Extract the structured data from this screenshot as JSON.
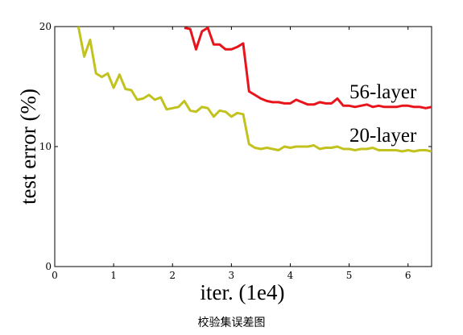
{
  "caption": "校验集误差图",
  "chart_data": {
    "type": "line",
    "title": "",
    "xlabel": "iter. (1e4)",
    "ylabel": "test error (%)",
    "xlim": [
      0,
      6.4
    ],
    "ylim": [
      0,
      20
    ],
    "xticks": [
      0,
      1,
      2,
      3,
      4,
      5,
      6
    ],
    "yticks": [
      0,
      10,
      20
    ],
    "xtick_labels": [
      "0",
      "1",
      "2",
      "3",
      "4",
      "5",
      "6"
    ],
    "ytick_labels": [
      "0",
      "10",
      "20"
    ],
    "grid": false,
    "series": [
      {
        "name": "56-layer",
        "color": "#e8141b",
        "x": [
          2.2,
          2.3,
          2.4,
          2.5,
          2.6,
          2.7,
          2.8,
          2.9,
          3.0,
          3.1,
          3.2,
          3.3,
          3.4,
          3.5,
          3.6,
          3.7,
          3.8,
          3.9,
          4.0,
          4.1,
          4.2,
          4.3,
          4.4,
          4.5,
          4.6,
          4.7,
          4.8,
          4.9,
          5.0,
          5.1,
          5.2,
          5.3,
          5.4,
          5.5,
          5.6,
          5.7,
          5.8,
          5.9,
          6.0,
          6.1,
          6.2,
          6.3,
          6.4
        ],
        "y": [
          19.9,
          19.8,
          18.1,
          19.6,
          19.9,
          18.5,
          18.5,
          18.1,
          18.1,
          18.3,
          18.6,
          14.6,
          14.3,
          14.0,
          13.8,
          13.7,
          13.7,
          13.6,
          13.6,
          13.9,
          13.7,
          13.5,
          13.5,
          13.7,
          13.6,
          13.6,
          14.0,
          13.4,
          13.4,
          13.3,
          13.4,
          13.5,
          13.3,
          13.4,
          13.3,
          13.3,
          13.3,
          13.4,
          13.4,
          13.3,
          13.3,
          13.2,
          13.3
        ]
      },
      {
        "name": "20-layer",
        "color": "#c2c21e",
        "x": [
          0.4,
          0.5,
          0.6,
          0.7,
          0.8,
          0.9,
          1.0,
          1.1,
          1.2,
          1.3,
          1.4,
          1.5,
          1.6,
          1.7,
          1.8,
          1.9,
          2.0,
          2.1,
          2.2,
          2.3,
          2.4,
          2.5,
          2.6,
          2.7,
          2.8,
          2.9,
          3.0,
          3.1,
          3.2,
          3.3,
          3.4,
          3.5,
          3.6,
          3.7,
          3.8,
          3.9,
          4.0,
          4.1,
          4.2,
          4.3,
          4.4,
          4.5,
          4.6,
          4.7,
          4.8,
          4.9,
          5.0,
          5.1,
          5.2,
          5.3,
          5.4,
          5.5,
          5.6,
          5.7,
          5.8,
          5.9,
          6.0,
          6.1,
          6.2,
          6.3,
          6.4
        ],
        "y": [
          20.0,
          17.5,
          18.9,
          16.1,
          15.8,
          16.1,
          14.9,
          16.0,
          14.8,
          14.7,
          13.9,
          14.0,
          14.3,
          13.9,
          14.1,
          13.1,
          13.2,
          13.3,
          13.8,
          13.0,
          12.9,
          13.3,
          13.2,
          12.5,
          13.0,
          12.9,
          12.5,
          12.8,
          12.7,
          10.2,
          9.9,
          9.8,
          9.9,
          9.8,
          9.7,
          10.0,
          9.9,
          10.0,
          10.0,
          10.0,
          10.1,
          9.8,
          9.9,
          9.9,
          10.0,
          9.8,
          9.8,
          9.7,
          9.8,
          9.8,
          9.9,
          9.7,
          9.7,
          9.7,
          9.7,
          9.6,
          9.7,
          9.6,
          9.7,
          9.7,
          9.6
        ]
      }
    ]
  }
}
